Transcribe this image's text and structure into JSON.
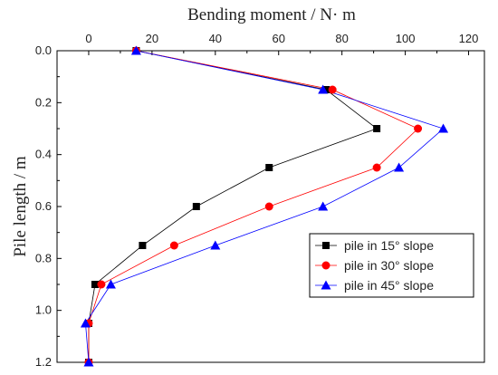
{
  "chart_data": {
    "type": "line",
    "xlabel": "Bending moment / N· m",
    "ylabel": "Pile length / m",
    "xlim": [
      -10,
      125
    ],
    "ylim": [
      0.0,
      1.2
    ],
    "y_inverted": true,
    "x_axis_position": "top",
    "xticks": [
      0,
      20,
      40,
      60,
      80,
      100,
      120
    ],
    "yticks": [
      0.0,
      0.2,
      0.4,
      0.6,
      0.8,
      1.0,
      1.2
    ],
    "grid": false,
    "legend_position": "bottom-right",
    "series": [
      {
        "name": "pile in 15°  slope",
        "color": "#000000",
        "marker": "square",
        "points": [
          [
            15,
            0.0
          ],
          [
            75,
            0.15
          ],
          [
            91,
            0.3
          ],
          [
            57,
            0.45
          ],
          [
            34,
            0.6
          ],
          [
            17,
            0.75
          ],
          [
            2,
            0.9
          ],
          [
            0,
            1.05
          ],
          [
            0,
            1.2
          ]
        ]
      },
      {
        "name": "pile in 30°  slope",
        "color": "#ff0000",
        "marker": "circle",
        "points": [
          [
            15,
            0.0
          ],
          [
            77,
            0.15
          ],
          [
            104,
            0.3
          ],
          [
            91,
            0.45
          ],
          [
            57,
            0.6
          ],
          [
            27,
            0.75
          ],
          [
            4,
            0.9
          ],
          [
            0,
            1.05
          ],
          [
            0,
            1.2
          ]
        ]
      },
      {
        "name": "pile in 45°  slope",
        "color": "#0000ff",
        "marker": "triangle",
        "points": [
          [
            15,
            0.0
          ],
          [
            74,
            0.15
          ],
          [
            112,
            0.3
          ],
          [
            98,
            0.45
          ],
          [
            74,
            0.6
          ],
          [
            40,
            0.75
          ],
          [
            7,
            0.9
          ],
          [
            -1,
            1.05
          ],
          [
            0,
            1.2
          ]
        ]
      }
    ]
  }
}
